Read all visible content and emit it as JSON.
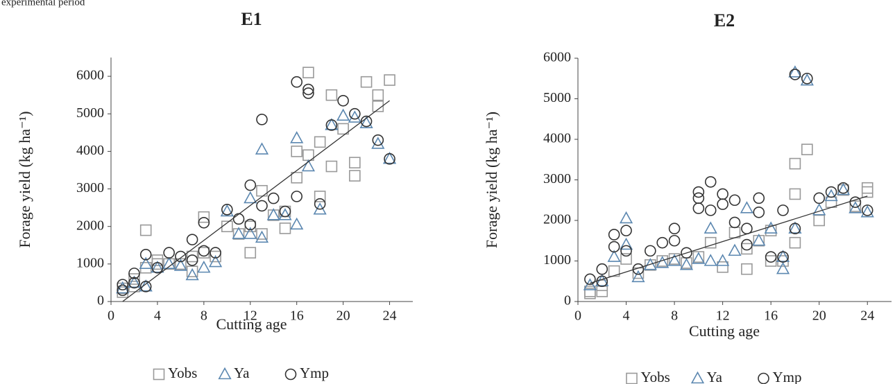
{
  "caption": "experimental period",
  "chart_data": [
    {
      "type": "scatter",
      "title": "E1",
      "xlabel": "Cutting age",
      "ylabel": "Forage yield (kg ha⁻¹)",
      "xlim": [
        0,
        26
      ],
      "ylim": [
        0,
        6500
      ],
      "xticks": [
        0,
        4,
        8,
        12,
        16,
        20,
        24
      ],
      "yticks": [
        0,
        1000,
        2000,
        3000,
        4000,
        5000,
        6000
      ],
      "legend": "bottom",
      "series": [
        {
          "name": "Yobs",
          "color": "#999999",
          "marker": "square",
          "x": [
            1,
            1,
            2,
            2,
            3,
            3,
            4,
            4,
            5,
            6,
            7,
            7,
            8,
            8,
            9,
            10,
            11,
            12,
            12,
            13,
            13,
            14,
            15,
            15,
            16,
            16,
            17,
            17,
            18,
            18,
            19,
            19,
            20,
            21,
            21,
            22,
            23,
            23,
            24
          ],
          "y": [
            250,
            350,
            400,
            600,
            1900,
            900,
            1000,
            1100,
            1000,
            1000,
            800,
            1200,
            2250,
            1300,
            1200,
            2000,
            1800,
            1300,
            2000,
            2950,
            1800,
            2300,
            1950,
            2400,
            3300,
            4000,
            3900,
            6100,
            4250,
            2800,
            3600,
            5500,
            4600,
            3700,
            3350,
            5850,
            5500,
            5200,
            5900
          ]
        },
        {
          "name": "Ya",
          "color": "#5b87b0",
          "marker": "triangle",
          "x": [
            1,
            2,
            3,
            3,
            4,
            5,
            6,
            7,
            8,
            9,
            10,
            11,
            12,
            12,
            13,
            13,
            14,
            15,
            16,
            16,
            17,
            18,
            19,
            20,
            21,
            22,
            23,
            24
          ],
          "y": [
            350,
            500,
            400,
            1000,
            900,
            1000,
            950,
            700,
            900,
            1050,
            2400,
            1800,
            1800,
            2750,
            4050,
            1700,
            2300,
            2300,
            2050,
            4350,
            3600,
            2450,
            4700,
            4950,
            4900,
            4750,
            4200,
            3800
          ]
        },
        {
          "name": "Ymp",
          "color": "#333333",
          "marker": "circle",
          "x": [
            1,
            1,
            2,
            2,
            3,
            3,
            4,
            5,
            6,
            7,
            7,
            8,
            8,
            9,
            10,
            11,
            12,
            12,
            13,
            13,
            14,
            15,
            16,
            16,
            17,
            17,
            18,
            19,
            20,
            21,
            22,
            23,
            24
          ],
          "y": [
            450,
            300,
            750,
            500,
            1250,
            400,
            900,
            1300,
            1200,
            1650,
            1100,
            2100,
            1350,
            1300,
            2450,
            2200,
            2050,
            3100,
            4850,
            2550,
            2750,
            2400,
            5850,
            2800,
            5550,
            5650,
            2600,
            4700,
            5350,
            5000,
            4800,
            4300,
            3800
          ]
        }
      ],
      "trendline": {
        "x": [
          1,
          24
        ],
        "y": [
          0,
          5350
        ],
        "color": "#333333"
      }
    },
    {
      "type": "scatter",
      "title": "E2",
      "xlabel": "Cutting age",
      "ylabel": "Forage yield (kg ha⁻¹)",
      "xlim": [
        0,
        26
      ],
      "ylim": [
        0,
        6000
      ],
      "xticks": [
        0,
        4,
        8,
        12,
        16,
        20,
        24
      ],
      "yticks": [
        0,
        1000,
        2000,
        3000,
        4000,
        5000,
        6000
      ],
      "legend": "bottom",
      "series": [
        {
          "name": "Yobs",
          "color": "#999999",
          "marker": "square",
          "x": [
            1,
            1,
            2,
            2,
            3,
            4,
            5,
            6,
            7,
            8,
            9,
            10,
            11,
            12,
            13,
            14,
            14,
            15,
            16,
            16,
            17,
            18,
            18,
            18,
            19,
            20,
            21,
            22,
            23,
            24,
            24
          ],
          "y": [
            250,
            200,
            250,
            400,
            750,
            1050,
            700,
            900,
            1000,
            1050,
            950,
            1100,
            1450,
            850,
            1700,
            800,
            1300,
            1500,
            1000,
            1750,
            1000,
            1450,
            2650,
            3400,
            3750,
            2000,
            2450,
            2750,
            2350,
            2800,
            2700
          ]
        },
        {
          "name": "Ya",
          "color": "#5b87b0",
          "marker": "triangle",
          "x": [
            1,
            2,
            3,
            4,
            4,
            5,
            6,
            7,
            8,
            9,
            10,
            11,
            11,
            12,
            13,
            14,
            15,
            16,
            17,
            17,
            18,
            18,
            19,
            20,
            21,
            22,
            23,
            24
          ],
          "y": [
            400,
            500,
            1100,
            2050,
            1400,
            600,
            900,
            950,
            1000,
            900,
            1050,
            1000,
            1800,
            1000,
            1250,
            2300,
            1500,
            1800,
            800,
            1100,
            1800,
            5650,
            5450,
            2250,
            2600,
            2750,
            2300,
            2200
          ]
        },
        {
          "name": "Ymp",
          "color": "#333333",
          "marker": "circle",
          "x": [
            1,
            2,
            2,
            3,
            3,
            4,
            4,
            5,
            6,
            7,
            8,
            8,
            9,
            10,
            10,
            10,
            11,
            11,
            12,
            12,
            13,
            13,
            14,
            14,
            15,
            15,
            16,
            17,
            17,
            18,
            18,
            19,
            20,
            21,
            22,
            23,
            24
          ],
          "y": [
            550,
            800,
            500,
            1650,
            1350,
            1750,
            1250,
            800,
            1250,
            1450,
            1800,
            1500,
            1200,
            2700,
            2550,
            2300,
            2950,
            2250,
            2650,
            2400,
            2500,
            1950,
            1800,
            1400,
            2550,
            2200,
            1100,
            1100,
            2250,
            5600,
            1800,
            5500,
            2550,
            2700,
            2800,
            2450,
            2250
          ]
        }
      ],
      "trendline": {
        "x": [
          1,
          24
        ],
        "y": [
          450,
          2600
        ],
        "color": "#333333"
      }
    }
  ]
}
